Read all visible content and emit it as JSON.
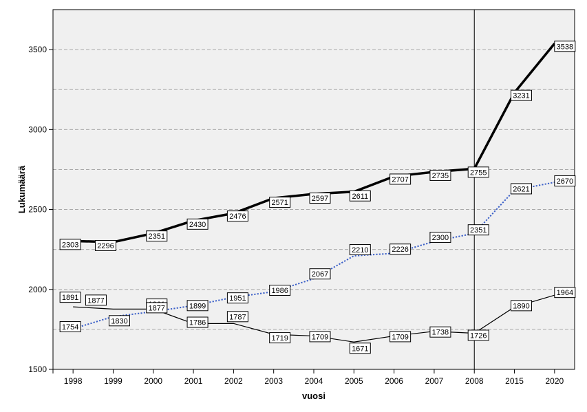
{
  "chart_data": {
    "type": "line",
    "title": "",
    "xlabel": "vuosi",
    "ylabel": "Lukumäärä",
    "categories": [
      "1998",
      "1999",
      "2000",
      "2001",
      "2002",
      "2003",
      "2004",
      "2005",
      "2006",
      "2007",
      "2008",
      "2015",
      "2020"
    ],
    "ylim": [
      1500,
      3750
    ],
    "yticks": [
      1500,
      2000,
      2500,
      3000,
      3500
    ],
    "gridlines": [
      1750,
      2000,
      2250,
      2500,
      2750,
      3000,
      3250,
      3500
    ],
    "grid": true,
    "legend": "none",
    "reference_line_category": "2008",
    "background_color": "#f0f0f0",
    "series": [
      {
        "values": [
          2303,
          2296,
          2351,
          2430,
          2476,
          2571,
          2597,
          2611,
          2707,
          2735,
          2755,
          3231,
          3538
        ],
        "color": "#000000",
        "style": "solid-thick"
      },
      {
        "values": [
          1754,
          1830,
          1861,
          1899,
          1951,
          1986,
          2067,
          2210,
          2226,
          2300,
          2351,
          2621,
          2670
        ],
        "color": "#3a5fc8",
        "style": "dotted"
      },
      {
        "values": [
          1891,
          1877,
          1877,
          1786,
          1787,
          1719,
          1709,
          1671,
          1709,
          1738,
          1726,
          1890,
          1964
        ],
        "color": "#000000",
        "style": "solid-thin"
      }
    ]
  }
}
